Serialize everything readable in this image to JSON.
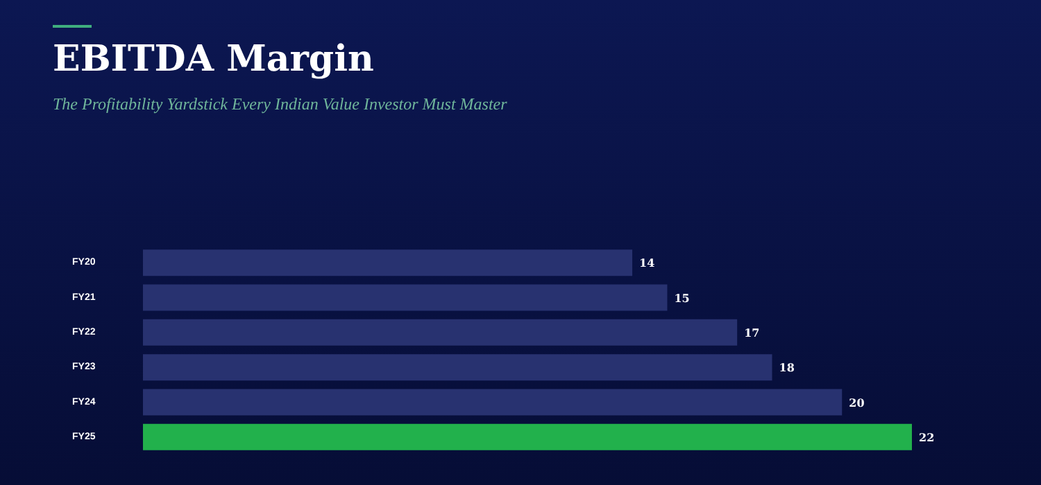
{
  "chart_data": {
    "type": "bar",
    "orientation": "horizontal",
    "title": "EBITDA Margin",
    "subtitle": "The Profitability Yardstick Every Indian Value Investor Must Master",
    "categories": [
      "FY20",
      "FY21",
      "FY22",
      "FY23",
      "FY24",
      "FY25"
    ],
    "values": [
      14,
      15,
      17,
      18,
      20,
      22
    ],
    "colors": [
      "#283270",
      "#283270",
      "#283270",
      "#283270",
      "#283270",
      "#22b14c"
    ],
    "data_labels": true
  }
}
